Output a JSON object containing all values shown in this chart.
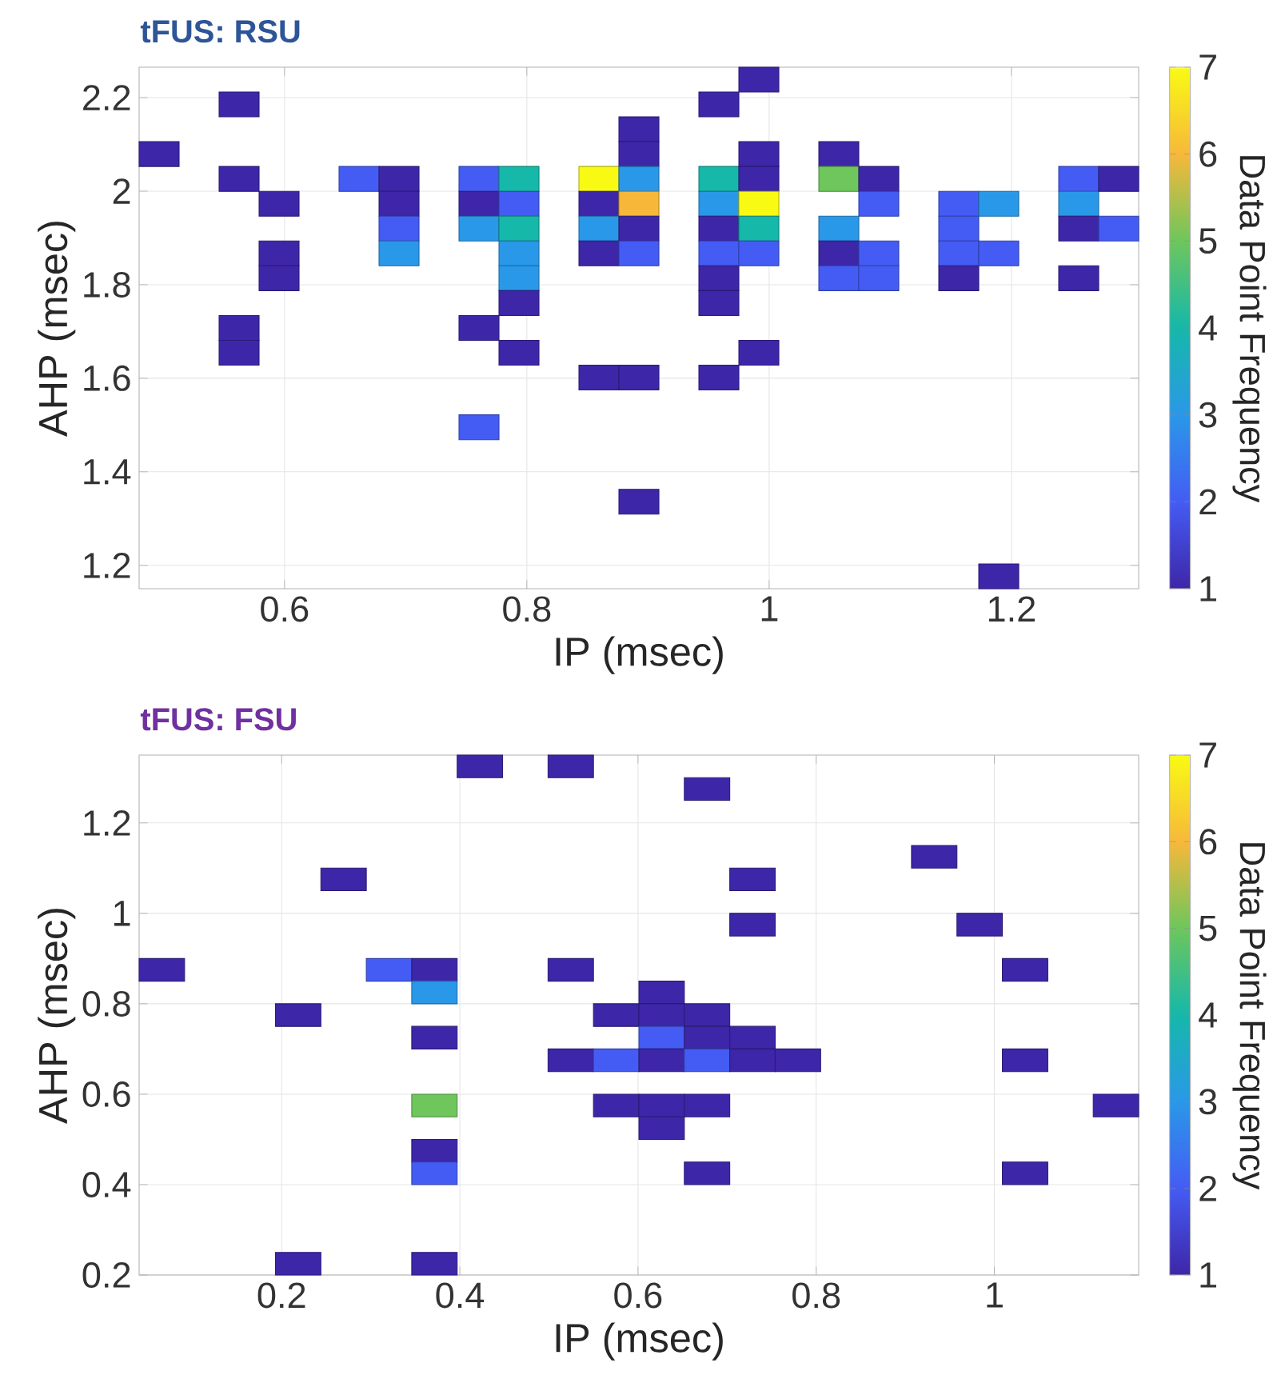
{
  "chart_data": [
    {
      "type": "scatter",
      "title": "tFUS: RSU",
      "xlabel": "IP (msec)",
      "ylabel": "AHP (msec)",
      "clabel": "Data Point Frequency",
      "marker": "square",
      "grid": true,
      "xlim": [
        0.48,
        1.305
      ],
      "ylim": [
        1.15,
        2.265
      ],
      "xticks": [
        0.6,
        0.8,
        1,
        1.2
      ],
      "yticks": [
        1.2,
        1.4,
        1.6,
        1.8,
        2,
        2.2
      ],
      "clim": [
        1,
        7
      ],
      "cticks": [
        1,
        2,
        3,
        4,
        5,
        6,
        7
      ],
      "x": [
        0.4965,
        0.5625,
        0.5625,
        0.5625,
        0.5625,
        0.5955,
        0.5955,
        0.5955,
        0.6615,
        0.6945,
        0.6945,
        0.6945,
        0.6945,
        0.7605,
        0.7605,
        0.7605,
        0.7605,
        0.7605,
        0.7935,
        0.7935,
        0.7935,
        0.7935,
        0.7935,
        0.7935,
        0.7935,
        0.8595,
        0.8595,
        0.8595,
        0.8595,
        0.8595,
        0.8925,
        0.8925,
        0.8925,
        0.8925,
        0.8925,
        0.8925,
        0.8925,
        0.8925,
        0.9585,
        0.9585,
        0.9585,
        0.9585,
        0.9585,
        0.9585,
        0.9585,
        0.9585,
        0.9915,
        0.9915,
        0.9915,
        0.9915,
        0.9915,
        0.9915,
        0.9915,
        1.0575,
        1.0575,
        1.0575,
        1.0575,
        1.0575,
        1.0905,
        1.0905,
        1.0905,
        1.0905,
        1.1565,
        1.1565,
        1.1565,
        1.1565,
        1.1895,
        1.1895,
        1.1895,
        1.2555,
        1.2555,
        1.2555,
        1.2555,
        1.2885,
        1.2885
      ],
      "values": [
        2.0793,
        2.1855,
        2.0262,
        1.7076,
        1.6545,
        1.9731,
        1.8669,
        1.8138,
        2.0262,
        2.0262,
        1.9731,
        1.92,
        1.8669,
        2.0262,
        1.9731,
        1.92,
        1.7076,
        1.4952,
        2.0262,
        1.9731,
        1.92,
        1.8669,
        1.8138,
        1.7607,
        1.6545,
        2.0262,
        1.9731,
        1.92,
        1.8669,
        1.6014,
        2.1324,
        2.0793,
        2.0262,
        1.9731,
        1.92,
        1.8669,
        1.6014,
        1.3359,
        2.1855,
        2.0262,
        1.9731,
        1.92,
        1.8669,
        1.8138,
        1.7607,
        1.6014,
        2.2386,
        2.0793,
        2.0262,
        1.9731,
        1.92,
        1.8669,
        1.6545,
        2.0793,
        2.0262,
        1.92,
        1.8669,
        1.8138,
        2.0262,
        1.9731,
        1.8669,
        1.8138,
        1.9731,
        1.92,
        1.8669,
        1.8138,
        1.9731,
        1.8669,
        1.1766,
        2.0262,
        1.9731,
        1.92,
        1.8138,
        2.0262,
        1.92
      ],
      "cvalues": [
        1,
        1,
        1,
        1,
        1,
        1,
        1,
        1,
        2,
        1,
        1,
        2,
        3,
        2,
        1,
        3,
        1,
        2,
        4,
        2,
        4,
        3,
        3,
        1,
        1,
        7,
        1,
        3,
        1,
        1,
        1,
        1,
        3,
        6,
        1,
        2,
        1,
        1,
        1,
        4,
        3,
        1,
        2,
        1,
        1,
        1,
        1,
        1,
        1,
        7,
        4,
        2,
        1,
        1,
        5,
        3,
        1,
        2,
        1,
        2,
        2,
        2,
        2,
        2,
        2,
        1,
        3,
        2,
        1,
        2,
        3,
        1,
        1,
        1,
        2
      ]
    },
    {
      "type": "scatter",
      "title": "tFUS: FSU",
      "xlabel": "IP (msec)",
      "ylabel": "AHP (msec)",
      "clabel": "Data Point Frequency",
      "marker": "square",
      "grid": true,
      "xlim": [
        0.04,
        1.162
      ],
      "ylim": [
        0.2,
        1.35
      ],
      "xticks": [
        0.2,
        0.4,
        0.6,
        0.8,
        1
      ],
      "yticks": [
        0.2,
        0.4,
        0.6,
        0.8,
        1,
        1.2
      ],
      "clim": [
        1,
        7
      ],
      "cticks": [
        1,
        2,
        3,
        4,
        5,
        6,
        7
      ],
      "x": [
        0.0655,
        0.2185,
        0.2185,
        0.2695,
        0.3205,
        0.3715,
        0.3715,
        0.3715,
        0.3715,
        0.3715,
        0.3715,
        0.3715,
        0.4225,
        0.5245,
        0.5245,
        0.5245,
        0.5755,
        0.5755,
        0.5755,
        0.6265,
        0.6265,
        0.6265,
        0.6265,
        0.6265,
        0.6265,
        0.6775,
        0.6775,
        0.6775,
        0.6775,
        0.6775,
        0.6775,
        0.7285,
        0.7285,
        0.7285,
        0.7285,
        0.7795,
        0.9325,
        0.9835,
        1.0345,
        1.0345,
        1.0345,
        1.1365
      ],
      "values": [
        0.875,
        0.775,
        0.225,
        1.075,
        0.875,
        0.875,
        0.825,
        0.725,
        0.575,
        0.475,
        0.425,
        0.225,
        1.325,
        1.325,
        0.875,
        0.675,
        0.775,
        0.675,
        0.575,
        0.825,
        0.775,
        0.725,
        0.675,
        0.575,
        0.525,
        1.275,
        0.775,
        0.725,
        0.675,
        0.575,
        0.425,
        1.075,
        0.975,
        0.725,
        0.675,
        0.675,
        1.125,
        0.975,
        0.875,
        0.675,
        0.425,
        0.575
      ],
      "cvalues": [
        1,
        1,
        1,
        1,
        2,
        1,
        3,
        1,
        5,
        1,
        2,
        1,
        1,
        1,
        1,
        1,
        1,
        2,
        1,
        1,
        1,
        2,
        1,
        1,
        1,
        1,
        1,
        1,
        2,
        1,
        1,
        1,
        1,
        1,
        1,
        1,
        1,
        1,
        1,
        1,
        1,
        1
      ]
    }
  ]
}
